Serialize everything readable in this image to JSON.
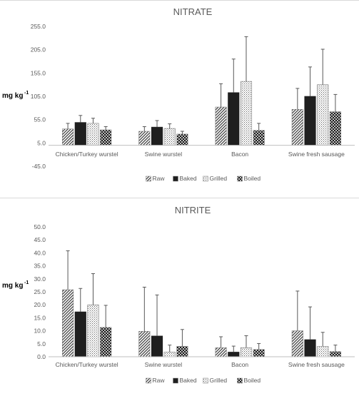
{
  "chart_data": [
    {
      "type": "bar",
      "title": "NITRATE",
      "ylabel_main": "mg kg",
      "ylabel_sup": "-1",
      "ylim": [
        -45,
        255
      ],
      "yticks": [
        -45,
        5,
        55,
        105,
        155,
        205,
        255
      ],
      "ytick_labels": [
        "-45.0",
        "5.0",
        "55.0",
        "105.0",
        "155.0",
        "205.0",
        "255.0"
      ],
      "categories": [
        "Chicken/Turkey wurstel",
        "Swine wurstel",
        "Bacon",
        "Swine fresh sausage"
      ],
      "series": [
        {
          "name": "Raw",
          "pattern": "diag",
          "values": [
            35,
            30,
            82,
            77
          ],
          "err": [
            12,
            10,
            50,
            45
          ]
        },
        {
          "name": "Baked",
          "pattern": "solid",
          "values": [
            49,
            39,
            113,
            105
          ],
          "err": [
            15,
            14,
            72,
            63
          ]
        },
        {
          "name": "Grilled",
          "pattern": "dots",
          "values": [
            47,
            36,
            137,
            130
          ],
          "err": [
            11,
            10,
            96,
            76
          ]
        },
        {
          "name": "Boiled",
          "pattern": "checker",
          "values": [
            33,
            24,
            32,
            72
          ],
          "err": [
            7,
            6,
            15,
            37
          ]
        }
      ],
      "legend": "bottom"
    },
    {
      "type": "bar",
      "title": "NITRITE",
      "ylabel_main": "mg kg",
      "ylabel_sup": "-1",
      "ylim": [
        0,
        50
      ],
      "yticks": [
        0,
        5,
        10,
        15,
        20,
        25,
        30,
        35,
        40,
        45,
        50
      ],
      "ytick_labels": [
        "0.0",
        "5.0",
        "10.0",
        "15.0",
        "20.0",
        "25.0",
        "30.0",
        "35.0",
        "40.0",
        "45.0",
        "50.0"
      ],
      "categories": [
        "Chicken/Turkey wurstel",
        "Swine wurstel",
        "Bacon",
        "Swine fresh sausage"
      ],
      "series": [
        {
          "name": "Raw",
          "pattern": "diag",
          "values": [
            25.8,
            9.8,
            3.5,
            10.0
          ],
          "err": [
            15.0,
            17.0,
            4.2,
            15.3
          ]
        },
        {
          "name": "Baked",
          "pattern": "solid",
          "values": [
            17.3,
            8.0,
            1.8,
            6.6
          ],
          "err": [
            9.0,
            15.8,
            2.3,
            12.6
          ]
        },
        {
          "name": "Grilled",
          "pattern": "dots",
          "values": [
            20.0,
            1.8,
            3.5,
            4.0
          ],
          "err": [
            12.0,
            2.7,
            4.6,
            5.4
          ]
        },
        {
          "name": "Boiled",
          "pattern": "checker",
          "values": [
            11.3,
            4.0,
            2.8,
            2.0
          ],
          "err": [
            8.5,
            6.5,
            2.3,
            2.5
          ]
        }
      ],
      "legend": "bottom"
    }
  ]
}
